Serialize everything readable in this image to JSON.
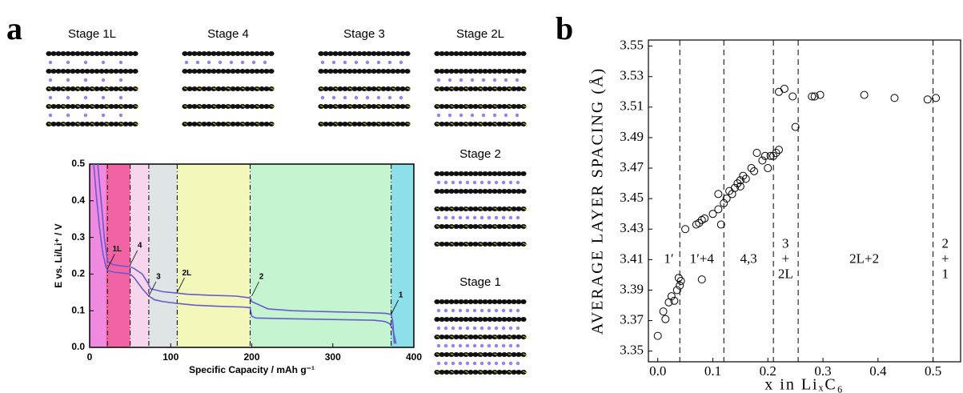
{
  "panel_labels": [
    "a",
    "b"
  ],
  "structures": [
    {
      "label": "Stage 1L"
    },
    {
      "label": "Stage 4"
    },
    {
      "label": "Stage 3"
    },
    {
      "label": "Stage 2L"
    },
    {
      "label": "Stage 2"
    },
    {
      "label": "Stage 1"
    }
  ],
  "chart_data": [
    {
      "type": "line",
      "x_label": "Specific Capacity / mAh g⁻¹",
      "y_label": "E vs. Li/Li⁺ / V",
      "xlim": [
        0,
        400
      ],
      "xticks": [
        0,
        100,
        200,
        300,
        400
      ],
      "ylim": [
        0,
        0.5
      ],
      "yticks": [
        {
          "value": 0,
          "label": "0.0"
        },
        0.1,
        0.2,
        0.3,
        0.4,
        0.5
      ],
      "regions": [
        {
          "from": 0,
          "to": 20,
          "color": "#f08ae0"
        },
        {
          "from": 20,
          "to": 50,
          "color": "#f263a6"
        },
        {
          "from": 50,
          "to": 73,
          "color": "#f6d6ec"
        },
        {
          "from": 73,
          "to": 108,
          "color": "#dfe4e4"
        },
        {
          "from": 108,
          "to": 198,
          "color": "#f3f7b9"
        },
        {
          "from": 198,
          "to": 372,
          "color": "#c4f5d0"
        },
        {
          "from": 372,
          "to": 400,
          "color": "#8ddfe9"
        }
      ],
      "vlines": [
        22,
        50,
        73,
        108,
        198,
        372
      ],
      "series": [
        {
          "color": "#6a5acd",
          "x": [
            5,
            8,
            12,
            16,
            20,
            22,
            30,
            40,
            50,
            55,
            65,
            73,
            80,
            90,
            108,
            130,
            160,
            190,
            198,
            200,
            205,
            250,
            300,
            350,
            360,
            365,
            370,
            374,
            376,
            378
          ],
          "values": [
            0.5,
            0.42,
            0.33,
            0.26,
            0.22,
            0.21,
            0.205,
            0.203,
            0.2,
            0.19,
            0.16,
            0.14,
            0.13,
            0.125,
            0.12,
            0.115,
            0.112,
            0.11,
            0.108,
            0.085,
            0.08,
            0.078,
            0.076,
            0.074,
            0.072,
            0.07,
            0.065,
            0.05,
            0.03,
            0.01
          ]
        },
        {
          "color": "#6a5acd",
          "x": [
            376,
            374,
            372,
            365,
            340,
            300,
            250,
            220,
            200,
            198,
            180,
            150,
            120,
            108,
            90,
            75,
            72,
            65,
            55,
            50,
            40,
            30,
            25,
            22,
            18,
            15,
            12,
            10
          ],
          "values": [
            0.01,
            0.07,
            0.09,
            0.093,
            0.095,
            0.097,
            0.1,
            0.105,
            0.125,
            0.135,
            0.14,
            0.142,
            0.145,
            0.148,
            0.152,
            0.16,
            0.175,
            0.2,
            0.215,
            0.22,
            0.222,
            0.225,
            0.23,
            0.235,
            0.3,
            0.38,
            0.45,
            0.5
          ]
        }
      ],
      "annotations": [
        {
          "text": "1L",
          "x": 22,
          "y": 0.215
        },
        {
          "text": "4",
          "x": 50,
          "y": 0.225
        },
        {
          "text": "3",
          "x": 73,
          "y": 0.14
        },
        {
          "text": "2L",
          "x": 108,
          "y": 0.15
        },
        {
          "text": "2",
          "x": 200,
          "y": 0.14
        },
        {
          "text": "1",
          "x": 372,
          "y": 0.09
        }
      ]
    },
    {
      "type": "scatter",
      "x_label": "x in LiₓC₆",
      "y_label": "AVERAGE LAYER SPACING (Å)",
      "xlim": [
        -0.017,
        0.55
      ],
      "xticks": [
        {
          "value": 0,
          "label": "0.0"
        },
        0.1,
        0.2,
        0.3,
        0.4,
        0.5
      ],
      "ylim": [
        3.343,
        3.554
      ],
      "yticks": [
        3.35,
        3.37,
        3.39,
        3.41,
        3.43,
        3.45,
        3.47,
        3.49,
        3.51,
        3.53,
        3.55
      ],
      "vlines": [
        0.04,
        0.12,
        0.21,
        0.255,
        0.5
      ],
      "region_labels": [
        {
          "lines": [
            "1′"
          ],
          "x": 0.02,
          "y": 3.41
        },
        {
          "lines": [
            "1′+4"
          ],
          "x": 0.08,
          "y": 3.41
        },
        {
          "lines": [
            "4,3"
          ],
          "x": 0.165,
          "y": 3.41
        },
        {
          "lines": [
            "3",
            "+",
            "2L"
          ],
          "x": 0.232,
          "y": 3.41
        },
        {
          "lines": [
            "2L+2"
          ],
          "x": 0.375,
          "y": 3.41
        },
        {
          "lines": [
            "2",
            "+",
            "1"
          ],
          "x": 0.522,
          "y": 3.41
        }
      ],
      "series": [
        {
          "color": "#000000",
          "x": [
            0.0,
            0.01,
            0.014,
            0.02,
            0.025,
            0.03,
            0.035,
            0.038,
            0.04,
            0.042,
            0.05,
            0.07,
            0.075,
            0.08,
            0.085,
            0.08,
            0.1,
            0.11,
            0.115,
            0.11,
            0.12,
            0.125,
            0.13,
            0.135,
            0.14,
            0.145,
            0.15,
            0.155,
            0.15,
            0.16,
            0.17,
            0.175,
            0.18,
            0.19,
            0.195,
            0.2,
            0.205,
            0.21,
            0.215,
            0.22,
            0.22,
            0.23,
            0.245,
            0.25,
            0.28,
            0.285,
            0.295,
            0.375,
            0.43,
            0.49,
            0.505
          ],
          "values": [
            3.36,
            3.376,
            3.371,
            3.382,
            3.386,
            3.383,
            3.39,
            3.398,
            3.393,
            3.396,
            3.43,
            3.433,
            3.434,
            3.436,
            3.437,
            3.397,
            3.44,
            3.443,
            3.433,
            3.453,
            3.447,
            3.45,
            3.455,
            3.453,
            3.457,
            3.46,
            3.462,
            3.465,
            3.458,
            3.463,
            3.47,
            3.468,
            3.48,
            3.475,
            3.478,
            3.47,
            3.478,
            3.478,
            3.48,
            3.482,
            3.52,
            3.522,
            3.517,
            3.497,
            3.517,
            3.517,
            3.518,
            3.518,
            3.516,
            3.515,
            3.516
          ]
        }
      ]
    }
  ]
}
